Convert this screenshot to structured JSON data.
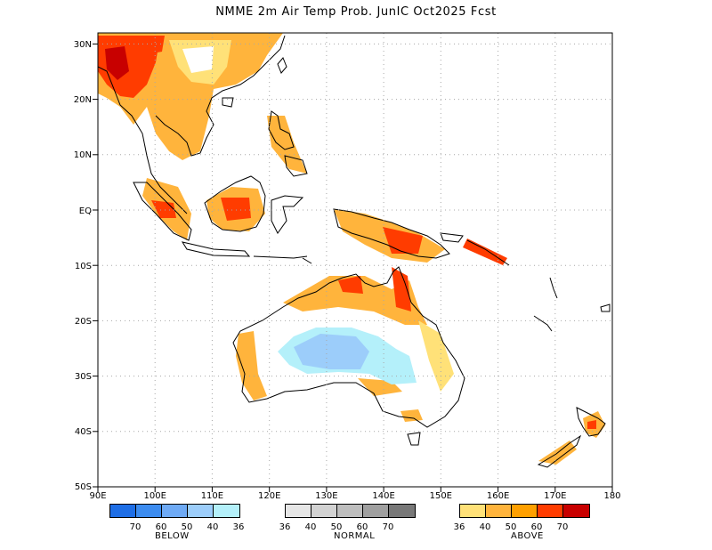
{
  "title": "NMME 2m Air Temp Prob. JunIC  Oct2025 Fcst",
  "axes": {
    "x_ticks": [
      "90E",
      "100E",
      "110E",
      "120E",
      "130E",
      "140E",
      "150E",
      "160E",
      "170E",
      "180"
    ],
    "y_ticks": [
      "30N",
      "20N",
      "10N",
      "EQ",
      "10S",
      "20S",
      "30S",
      "40S",
      "50S"
    ]
  },
  "legend": {
    "below": {
      "caption": "BELOW",
      "numbers": [
        "70",
        "60",
        "50",
        "40",
        "36"
      ],
      "colors": [
        "#1e6ee6",
        "#3c8cf0",
        "#6eaaf5",
        "#9ccdfa",
        "#b4f0fa"
      ]
    },
    "normal": {
      "caption": "NORMAL",
      "numbers": [
        "36",
        "40",
        "50",
        "60",
        "70"
      ],
      "colors": [
        "#e6e6e6",
        "#d2d2d2",
        "#bebebe",
        "#a0a0a0",
        "#787878"
      ]
    },
    "above": {
      "caption": "ABOVE",
      "numbers": [
        "36",
        "40",
        "50",
        "60",
        "70"
      ],
      "colors": [
        "#ffe178",
        "#ffb43c",
        "#ffa000",
        "#ff3c00",
        "#c80000"
      ]
    }
  },
  "map_extent": {
    "lon": [
      90,
      180
    ],
    "lat": [
      -50,
      32
    ]
  },
  "categories_shown": [
    "above",
    "below"
  ]
}
